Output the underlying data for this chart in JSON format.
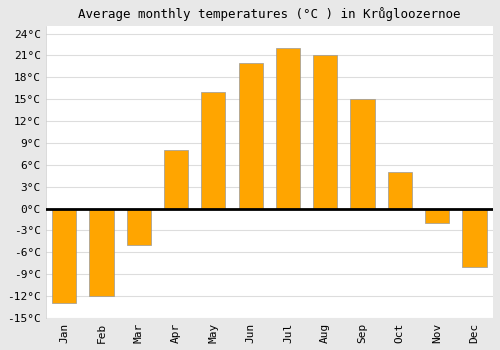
{
  "title": "Average monthly temperatures (°C ) in Krůgloozernoe",
  "months": [
    "Jan",
    "Feb",
    "Mar",
    "Apr",
    "May",
    "Jun",
    "Jul",
    "Aug",
    "Sep",
    "Oct",
    "Nov",
    "Dec"
  ],
  "temperatures": [
    -13,
    -12,
    -5,
    8,
    16,
    20,
    22,
    21,
    15,
    5,
    -2,
    -8
  ],
  "bar_color": "#FFA500",
  "bar_edge_color": "#999999",
  "ylim": [
    -15,
    25
  ],
  "yticks": [
    -15,
    -12,
    -9,
    -6,
    -3,
    0,
    3,
    6,
    9,
    12,
    15,
    18,
    21,
    24
  ],
  "ytick_labels": [
    "-15°C",
    "-12°C",
    "-9°C",
    "-6°C",
    "-3°C",
    "0°C",
    "3°C",
    "6°C",
    "9°C",
    "12°C",
    "15°C",
    "18°C",
    "21°C",
    "24°C"
  ],
  "plot_bg_color": "#ffffff",
  "fig_bg_color": "#e8e8e8",
  "grid_color": "#dddddd",
  "zero_line_color": "#000000",
  "title_fontsize": 9,
  "tick_fontsize": 8,
  "xlabel_rotation": 90,
  "bar_width": 0.65
}
